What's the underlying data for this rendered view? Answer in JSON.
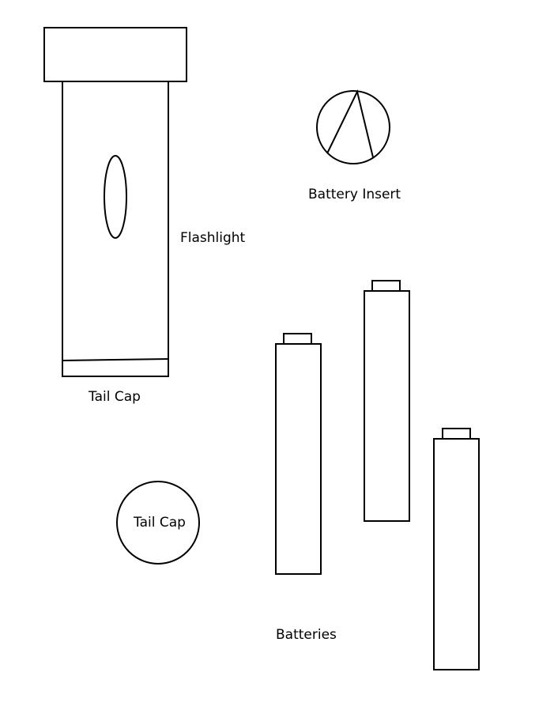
{
  "labels": {
    "flashlight": "Flashlight",
    "tail_cap_under_body": "Tail Cap",
    "tail_cap_circle": "Tail Cap",
    "battery_insert": "Battery Insert",
    "batteries": "Batteries"
  },
  "colors": {
    "stroke": "#000000",
    "background": "#ffffff"
  }
}
